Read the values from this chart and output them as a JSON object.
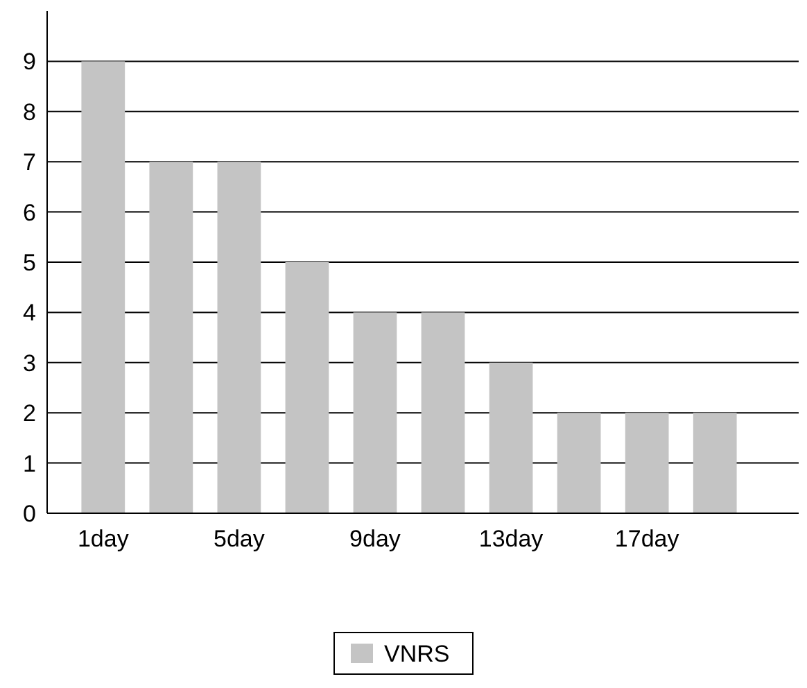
{
  "chart_data": {
    "type": "bar",
    "categories": [
      "1day",
      null,
      "5day",
      null,
      "9day",
      null,
      "13day",
      null,
      "17day",
      null
    ],
    "series": [
      {
        "name": "VNRS",
        "color": "#c4c4c4",
        "values": [
          9,
          7,
          7,
          5,
          4,
          4,
          3,
          2,
          2,
          2
        ]
      }
    ],
    "ylim": [
      0,
      10
    ],
    "yticks": [
      0,
      1,
      2,
      3,
      4,
      5,
      6,
      7,
      8,
      9
    ],
    "grid": "y",
    "legend": "bottom"
  }
}
